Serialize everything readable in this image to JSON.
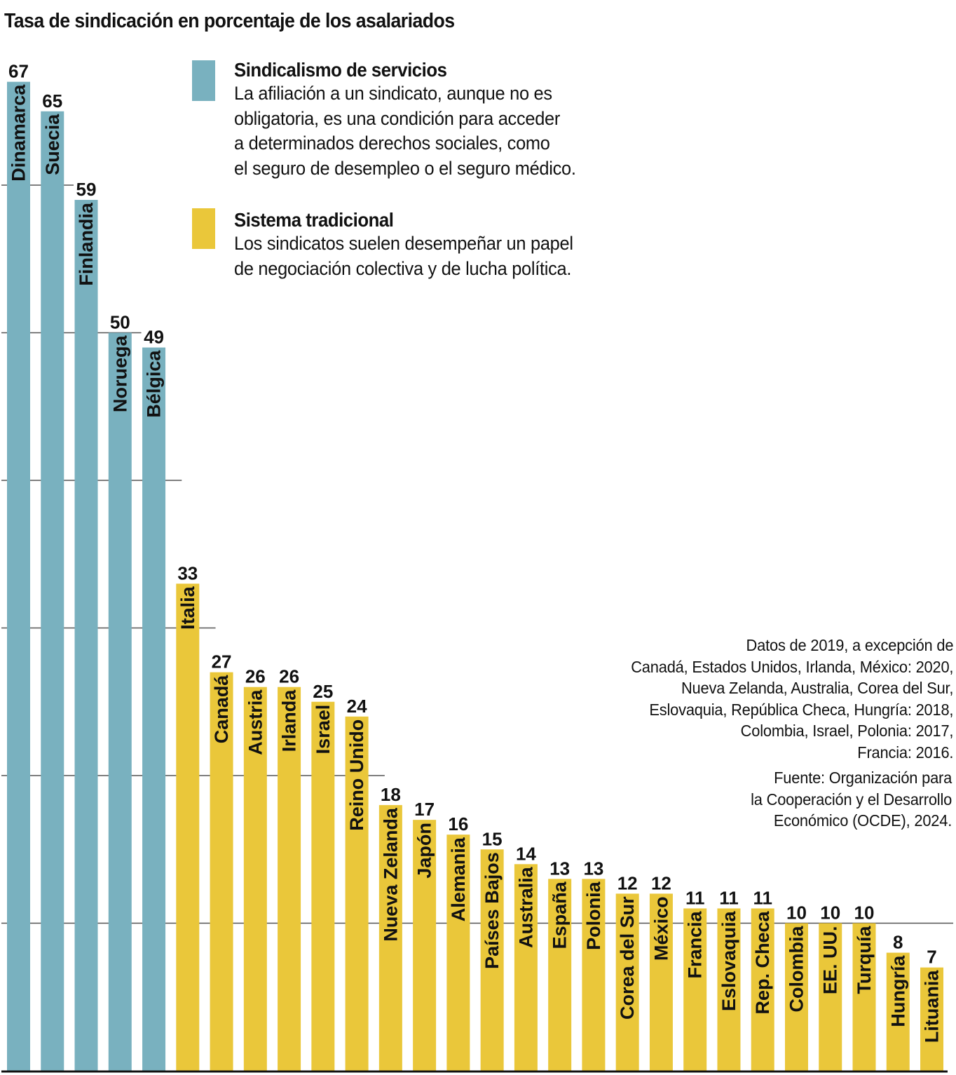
{
  "title": "Tasa de sindicación en porcentaje de los asalariados",
  "legend": [
    {
      "key": "servicios",
      "title": "Sindicalismo de servicios",
      "color": "#79B1BF",
      "description_lines": [
        "La afiliación a un sindicato, aunque no es",
        "obligatoria, es una condición para acceder",
        "a determinados derechos sociales, como",
        "el seguro de desempleo o el seguro médico."
      ]
    },
    {
      "key": "tradicional",
      "title": "Sistema tradicional",
      "color": "#EAC73A",
      "description_lines": [
        "Los sindicatos suelen desempeñar un papel",
        "de negociación colectiva y de lucha política."
      ]
    }
  ],
  "note_lines": [
    "Datos de 2019, a excepción de",
    "Canadá, Estados Unidos, Irlanda, México: 2020,",
    "Nueva Zelanda, Australia, Corea del Sur,",
    "Eslovaquia, República Checa, Hungría: 2018,",
    "Colombia, Israel, Polonia: 2017,",
    "Francia: 2016."
  ],
  "source_lines": [
    "Fuente: Organización para",
    "la Cooperación y el Desarrollo",
    "Económico (OCDE), 2024."
  ],
  "chart_data": {
    "type": "bar",
    "title": "Tasa de sindicación en porcentaje de los asalariados",
    "xlabel": "",
    "ylabel": "",
    "ylim": [
      0,
      70
    ],
    "gridlines": [
      10,
      20,
      30,
      40,
      50,
      60
    ],
    "grid": true,
    "legend_position": "top-right",
    "categories": [
      "Dinamarca",
      "Suecia",
      "Finlandia",
      "Noruega",
      "Bélgica",
      "Italia",
      "Canadá",
      "Austria",
      "Irlanda",
      "Israel",
      "Reino Unido",
      "Nueva Zelanda",
      "Japón",
      "Alemania",
      "Países Bajos",
      "Australia",
      "España",
      "Polonia",
      "Corea del Sur",
      "México",
      "Francia",
      "Eslovaquia",
      "Rep. Checa",
      "Colombia",
      "EE. UU.",
      "Turquía",
      "Hungría",
      "Lituania"
    ],
    "values": [
      67,
      65,
      59,
      50,
      49,
      33,
      27,
      26,
      26,
      25,
      24,
      18,
      17,
      16,
      15,
      14,
      13,
      13,
      12,
      12,
      11,
      11,
      11,
      10,
      10,
      10,
      8,
      7
    ],
    "groups": [
      "servicios",
      "servicios",
      "servicios",
      "servicios",
      "servicios",
      "tradicional",
      "tradicional",
      "tradicional",
      "tradicional",
      "tradicional",
      "tradicional",
      "tradicional",
      "tradicional",
      "tradicional",
      "tradicional",
      "tradicional",
      "tradicional",
      "tradicional",
      "tradicional",
      "tradicional",
      "tradicional",
      "tradicional",
      "tradicional",
      "tradicional",
      "tradicional",
      "tradicional",
      "tradicional",
      "tradicional"
    ]
  }
}
